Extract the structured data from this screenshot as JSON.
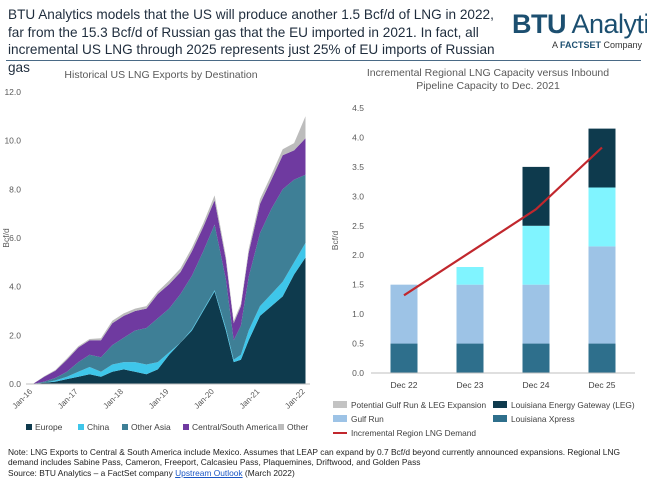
{
  "headline": "BTU Analytics models that the US will produce another 1.5 Bcf/d of LNG in 2022, far from the 15.3 Bcf/d of Russian gas that the EU imported in 2021. In fact, all incremental US LNG through 2025 represents just 25% of EU imports of Russian gas",
  "logo": {
    "main_bold": "BTU",
    "main_rest": " Analytics",
    "sub_prefix": "A ",
    "sub_brand": "FACTSET",
    "sub_suffix": " Company"
  },
  "notes": {
    "note": "Note: LNG Exports to Central & South America include Mexico. Assumes that LEAP can expand by 0.7 Bcf/d beyond currently announced expansions. Regional LNG demand includes Sabine Pass, Cameron, Freeport, Calcasieu Pass, Plaquemines, Driftwood, and Golden Pass",
    "source_prefix": "Source: BTU Analytics – a FactSet company ",
    "source_link": "Upstream Outlook",
    "source_suffix": " (March 2022)"
  },
  "colors": {
    "europe": "#0e3a4d",
    "china": "#3ec6ea",
    "other_asia": "#3e7f96",
    "central_south_america": "#6f3aa0",
    "other": "#bcbcbc",
    "potential_gulf_run": "#c3c3c3",
    "gulf_run": "#9dc3e6",
    "louisiana_xpress": "#2e6f8c",
    "leg": "#0e3a4d",
    "lng_capacity_cyan": "#80f4ff",
    "demand_line": "#c1272d"
  },
  "chart_data": [
    {
      "type": "area",
      "title": "Historical US LNG Exports by Destination",
      "ylabel": "Bcf/d",
      "ylim": [
        0,
        12
      ],
      "yticks": [
        "0.0",
        "2.0",
        "4.0",
        "6.0",
        "8.0",
        "10.0",
        "12.0"
      ],
      "x": [
        2016.0,
        2016.25,
        2016.5,
        2016.75,
        2017.0,
        2017.25,
        2017.5,
        2017.75,
        2018.0,
        2018.25,
        2018.5,
        2018.75,
        2019.0,
        2019.25,
        2019.5,
        2019.75,
        2020.0,
        2020.25,
        2020.42,
        2020.58,
        2020.75,
        2021.0,
        2021.25,
        2021.5,
        2021.75,
        2022.0
      ],
      "xtick_values": [
        2016,
        2017,
        2018,
        2019,
        2020,
        2021,
        2022
      ],
      "xtick_labels": [
        "Jan-16",
        "Jan-17",
        "Jan-18",
        "Jan-19",
        "Jan-20",
        "Jan-21",
        "Jan-22"
      ],
      "series": [
        {
          "name": "Europe",
          "values": [
            0,
            0.05,
            0.1,
            0.2,
            0.3,
            0.4,
            0.3,
            0.5,
            0.6,
            0.5,
            0.4,
            0.6,
            1.2,
            1.7,
            2.2,
            3.0,
            3.8,
            2.2,
            0.9,
            1.0,
            1.8,
            2.8,
            3.2,
            3.6,
            4.5,
            5.2
          ]
        },
        {
          "name": "China",
          "values": [
            0,
            0,
            0.05,
            0.1,
            0.2,
            0.3,
            0.2,
            0.3,
            0.3,
            0.4,
            0.4,
            0.3,
            0.1,
            0.0,
            0.05,
            0.05,
            0.05,
            0.1,
            0.1,
            0.2,
            0.4,
            0.4,
            0.5,
            0.6,
            0.5,
            0.6
          ]
        },
        {
          "name": "Other Asia",
          "values": [
            0,
            0.05,
            0.1,
            0.2,
            0.4,
            0.5,
            0.6,
            0.8,
            1.0,
            1.3,
            1.5,
            1.8,
            1.8,
            2.0,
            2.2,
            2.4,
            2.7,
            2.0,
            0.8,
            1.2,
            2.2,
            3.0,
            3.5,
            3.8,
            3.4,
            2.8
          ]
        },
        {
          "name": "Central/South America",
          "values": [
            0,
            0.2,
            0.3,
            0.5,
            0.6,
            0.6,
            0.7,
            0.9,
            0.9,
            0.8,
            0.8,
            1.0,
            1.0,
            0.9,
            1.0,
            1.0,
            1.0,
            0.8,
            0.7,
            0.8,
            1.0,
            1.2,
            1.2,
            1.4,
            1.2,
            1.5
          ]
        },
        {
          "name": "Other",
          "values": [
            0,
            0.02,
            0.03,
            0.05,
            0.05,
            0.05,
            0.08,
            0.1,
            0.1,
            0.1,
            0.1,
            0.1,
            0.15,
            0.15,
            0.15,
            0.15,
            0.2,
            0.15,
            0.1,
            0.1,
            0.15,
            0.2,
            0.2,
            0.25,
            0.3,
            0.9
          ]
        }
      ],
      "legend": [
        "Europe",
        "China",
        "Other Asia",
        "Central/South America",
        "Other"
      ],
      "legend_position": "bottom"
    },
    {
      "type": "bar",
      "stacked": true,
      "title": "Incremental Regional LNG Capacity versus Inbound Pipeline Capacity to Dec. 2021",
      "title_lines": [
        "Incremental Regional LNG Capacity versus Inbound",
        "Pipeline Capacity to Dec. 2021"
      ],
      "ylabel": "Bcf/d",
      "ylim": [
        0,
        4.5
      ],
      "yticks": [
        "0.0",
        "0.5",
        "1.0",
        "1.5",
        "2.0",
        "2.5",
        "3.0",
        "3.5",
        "4.0",
        "4.5"
      ],
      "categories": [
        "Dec 22",
        "Dec 23",
        "Dec 24",
        "Dec 25"
      ],
      "series": [
        {
          "name": "Louisiana Xpress",
          "values": [
            0.5,
            0.5,
            0.5,
            0.5
          ]
        },
        {
          "name": "Gulf Run",
          "values": [
            1.0,
            1.0,
            1.0,
            1.65
          ]
        },
        {
          "name": "Potential Gulf Run & LEG Expansion",
          "values": [
            0,
            0.3,
            1.0,
            1.0
          ]
        },
        {
          "name": "Louisiana Energy Gateway (LEG)",
          "values": [
            0,
            0,
            1.0,
            1.0
          ]
        }
      ],
      "line_series": {
        "name": "Incremental Region LNG Demand",
        "values": [
          1.32,
          2.05,
          2.78,
          3.83
        ]
      },
      "legend": [
        "Potential Gulf Run & LEG Expansion",
        "Louisiana Energy Gateway (LEG)",
        "Gulf Run",
        "Louisiana Xpress",
        "Incremental Region LNG Demand"
      ],
      "legend_position": "bottom"
    }
  ]
}
